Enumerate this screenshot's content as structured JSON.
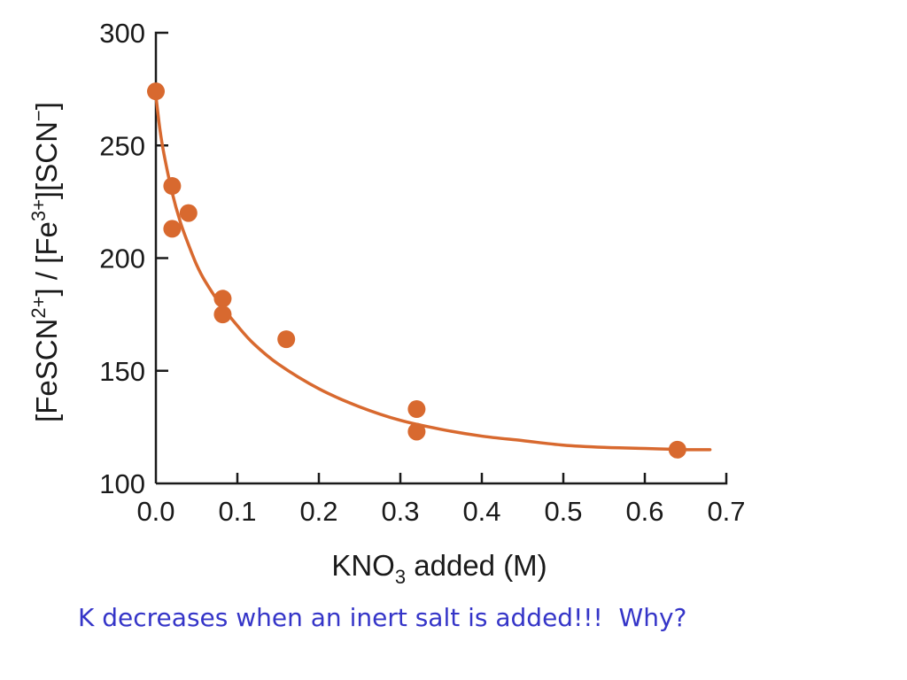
{
  "chart_data": {
    "type": "scatter",
    "title": "",
    "xlabel": {
      "main": "KNO",
      "sub": "3",
      "tail": " added (M)"
    },
    "ylabel": {
      "p1": "[FeSCN",
      "sup1": "2+",
      "p2": "] / [Fe",
      "sup2": "3+",
      "p3": "][SCN",
      "sup3": "−",
      "p4": "]"
    },
    "xlim": [
      0.0,
      0.7
    ],
    "ylim": [
      100,
      300
    ],
    "xticks": [
      0.0,
      0.1,
      0.2,
      0.3,
      0.4,
      0.5,
      0.6,
      0.7
    ],
    "xtick_labels": [
      "0.0",
      "0.1",
      "0.2",
      "0.3",
      "0.4",
      "0.5",
      "0.6",
      "0.7"
    ],
    "yticks": [
      100,
      150,
      200,
      250,
      300
    ],
    "ytick_labels": [
      "100",
      "150",
      "200",
      "250",
      "300"
    ],
    "grid": false,
    "series": [
      {
        "type": "scatter",
        "x": [
          0.0,
          0.02,
          0.02,
          0.04,
          0.082,
          0.082,
          0.16,
          0.32,
          0.32,
          0.64
        ],
        "y": [
          274,
          232,
          213,
          220,
          182,
          175,
          164,
          133,
          123,
          115
        ]
      },
      {
        "type": "line",
        "x": [
          0.0,
          0.005,
          0.01,
          0.02,
          0.03,
          0.04,
          0.05,
          0.06,
          0.08,
          0.1,
          0.12,
          0.15,
          0.2,
          0.25,
          0.3,
          0.35,
          0.4,
          0.45,
          0.5,
          0.55,
          0.6,
          0.65,
          0.68
        ],
        "y": [
          272,
          257,
          246,
          229,
          216,
          206,
          197,
          190,
          179,
          170,
          162,
          153,
          142,
          134,
          128,
          124,
          121,
          119,
          117,
          116,
          115.5,
          115,
          115
        ]
      }
    ],
    "color": "#d8692f"
  },
  "caption": "K decreases when an inert salt is added!!!  Why?",
  "colors": {
    "data": "#d8692f",
    "axis": "#1a1a1a",
    "caption": "#3535c8"
  }
}
